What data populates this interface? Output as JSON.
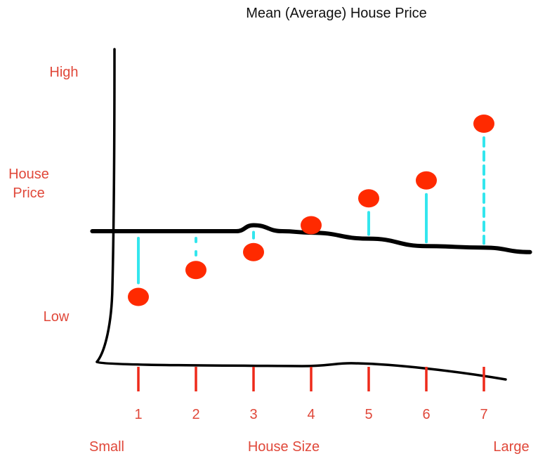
{
  "chart_data": {
    "type": "scatter",
    "title": "Mean (Average) House Price",
    "xlabel": "House Size",
    "ylabel_lines": [
      "House",
      "Price"
    ],
    "y_high_label": "High",
    "y_low_label": "Low",
    "x_small_label": "Small",
    "x_large_label": "Large",
    "x_ticks": [
      "1",
      "2",
      "3",
      "4",
      "5",
      "6",
      "7"
    ],
    "xlim": [
      0,
      8
    ],
    "ylim": [
      0,
      10
    ],
    "grid": false,
    "legend": "none",
    "points": [
      {
        "x": 1,
        "y": 3.0
      },
      {
        "x": 2,
        "y": 3.9
      },
      {
        "x": 3,
        "y": 4.5
      },
      {
        "x": 4,
        "y": 5.4
      },
      {
        "x": 5,
        "y": 6.3
      },
      {
        "x": 6,
        "y": 6.9
      },
      {
        "x": 7,
        "y": 8.8
      }
    ],
    "mean_line": [
      {
        "x": 0.2,
        "y": 5.2
      },
      {
        "x": 2.0,
        "y": 5.2
      },
      {
        "x": 2.7,
        "y": 5.2
      },
      {
        "x": 3.0,
        "y": 5.4
      },
      {
        "x": 3.5,
        "y": 5.2
      },
      {
        "x": 4.0,
        "y": 5.15
      },
      {
        "x": 5.0,
        "y": 4.95
      },
      {
        "x": 6.0,
        "y": 4.7
      },
      {
        "x": 7.0,
        "y": 4.65
      },
      {
        "x": 7.8,
        "y": 4.5
      }
    ],
    "colors": {
      "points": "#ff2a00",
      "ticks": "#ee2a1a",
      "labels": "#e0483a",
      "residuals": "#33e6ee",
      "axes": "#000000",
      "title": "#111111"
    }
  }
}
